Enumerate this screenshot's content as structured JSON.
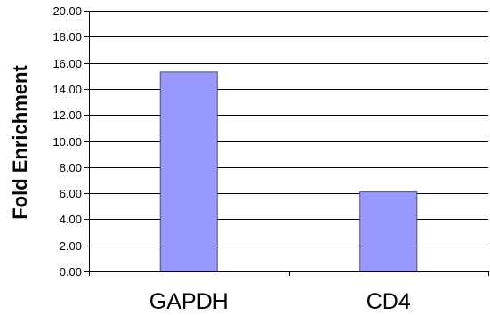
{
  "chart_data": {
    "type": "bar",
    "title": "",
    "xlabel": "",
    "ylabel": "Fold Enrichment",
    "categories": [
      "GAPDH",
      "CD4"
    ],
    "values": [
      15.3,
      6.1
    ],
    "ylim": [
      0,
      20
    ],
    "yticks": [
      "0.00",
      "2.00",
      "4.00",
      "6.00",
      "8.00",
      "10.00",
      "12.00",
      "14.00",
      "16.00",
      "18.00",
      "20.00"
    ],
    "grid": true,
    "legend": "none",
    "colors": {
      "bar_fill": "#9999ff",
      "bar_stroke": "#4d4d80",
      "grid": "#000000"
    }
  }
}
